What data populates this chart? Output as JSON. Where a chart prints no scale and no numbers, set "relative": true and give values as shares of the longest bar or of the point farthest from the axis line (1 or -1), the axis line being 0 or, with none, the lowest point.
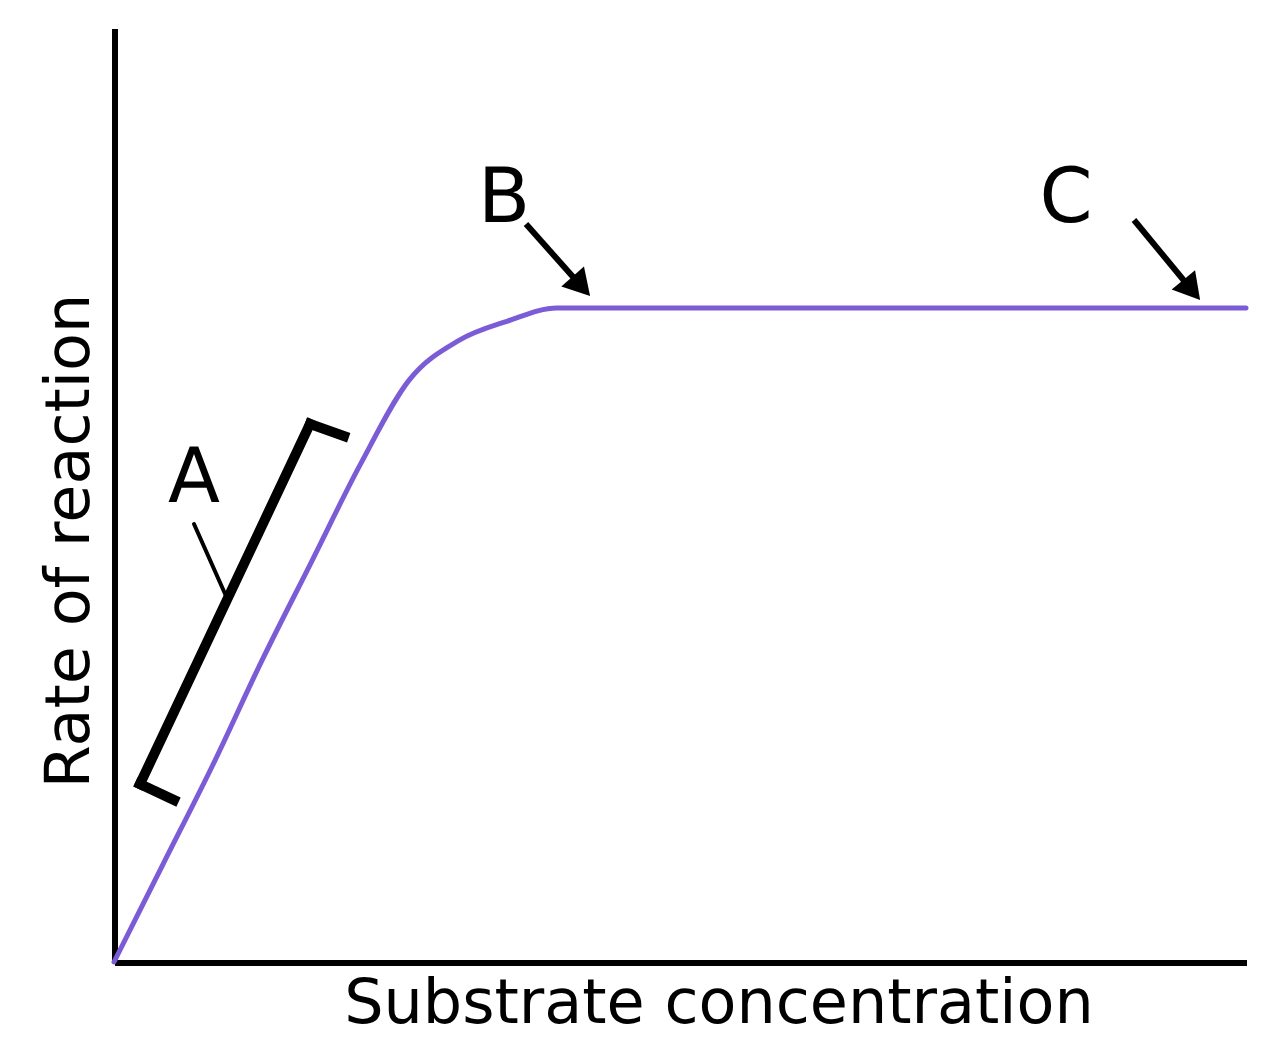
{
  "chart_data": {
    "type": "line",
    "relative": true,
    "xlabel": "Substrate concentration",
    "ylabel": "Rate of reaction",
    "categories": [
      null,
      null,
      null,
      null,
      null,
      null,
      null,
      null,
      null,
      null,
      null,
      null,
      null,
      null,
      null,
      null,
      null,
      null,
      null,
      null,
      null,
      null,
      null,
      null
    ],
    "values": [
      0,
      0.15,
      0.3,
      0.46,
      0.61,
      0.76,
      0.89,
      0.95,
      0.98,
      1,
      1,
      1,
      1,
      1,
      1,
      1,
      1,
      1,
      1,
      1,
      1,
      1,
      1,
      1
    ],
    "color": "#7b5cd6",
    "annotations": [
      "A",
      "B",
      "C"
    ]
  }
}
